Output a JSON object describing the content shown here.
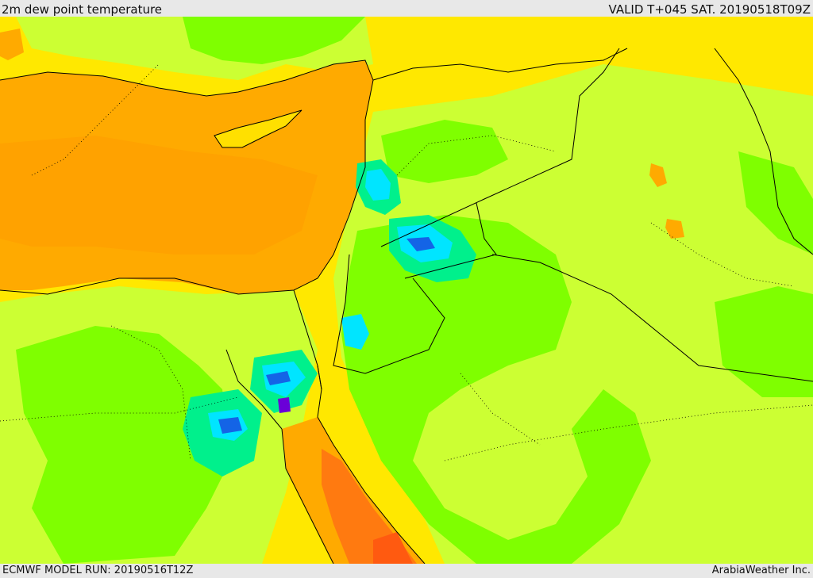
{
  "header": {
    "title": "2m dew point temperature",
    "valid_time": "VALID T+045 SAT. 20190518T09Z"
  },
  "footer": {
    "model_run": "ECMWF MODEL RUN: 20190516T12Z",
    "credit": "ArabiaWeather Inc."
  },
  "palette": {
    "sea_orange": "#FFAA00",
    "warm_yellow": "#FFE000",
    "yellow_green": "#CCFF33",
    "green": "#7FFF00",
    "teal_green": "#00F08C",
    "cyan": "#00E5FF",
    "blue": "#1464E6",
    "purple": "#6A00D8",
    "deep_orange": "#FF7A10",
    "border": "#000000"
  }
}
